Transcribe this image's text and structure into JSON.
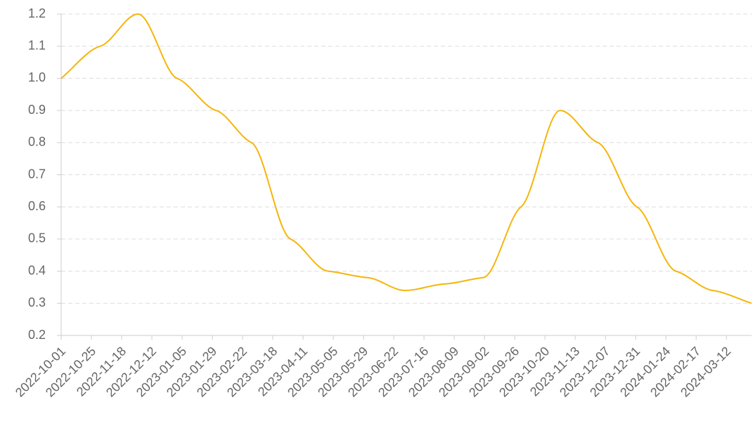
{
  "chart_data": {
    "type": "line",
    "x": [
      "2022-10-01",
      "2022-11-01",
      "2022-12-01",
      "2023-01-01",
      "2023-02-01",
      "2023-03-01",
      "2023-04-01",
      "2023-05-01",
      "2023-06-01",
      "2023-07-01",
      "2023-08-01",
      "2023-09-01",
      "2023-10-01",
      "2023-11-01",
      "2023-12-01",
      "2024-01-01",
      "2024-02-01",
      "2024-03-01",
      "2024-04-01"
    ],
    "series": [
      {
        "color": "#f5b50a",
        "values": [
          1.0,
          1.1,
          1.2,
          1.0,
          0.9,
          0.8,
          0.5,
          0.4,
          0.38,
          0.34,
          0.36,
          0.38,
          0.6,
          0.9,
          0.8,
          0.6,
          0.4,
          0.34,
          0.3
        ]
      }
    ],
    "xlim": [
      "2022-10-01",
      "2024-04-01"
    ],
    "xticks": [
      "2022-10-01",
      "2022-10-25",
      "2022-11-18",
      "2022-12-12",
      "2023-01-05",
      "2023-01-29",
      "2023-02-22",
      "2023-03-18",
      "2023-04-11",
      "2023-05-05",
      "2023-05-29",
      "2023-06-22",
      "2023-07-16",
      "2023-08-09",
      "2023-09-02",
      "2023-09-26",
      "2023-10-20",
      "2023-11-13",
      "2023-12-07",
      "2023-12-31",
      "2024-01-24",
      "2024-02-17",
      "2024-03-12"
    ],
    "ylim": [
      0.2,
      1.2
    ],
    "yticks": [
      0.2,
      0.3,
      0.4,
      0.5,
      0.6,
      0.7,
      0.8,
      0.9,
      {
        "value": 1,
        "label": "1.0"
      },
      1.1,
      1.2
    ],
    "grid": true
  }
}
